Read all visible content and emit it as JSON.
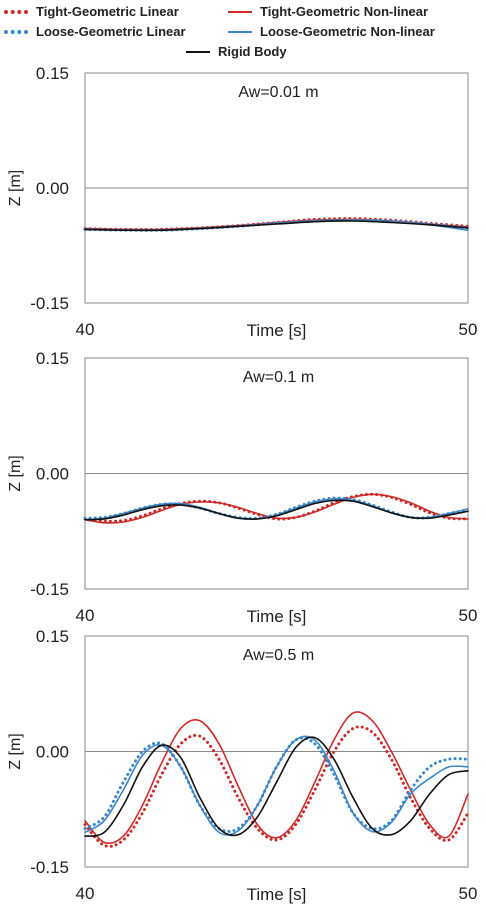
{
  "legend": {
    "items": [
      {
        "label": "Tight-Geometric Linear",
        "color": "#cf2a2a",
        "style": "dotted"
      },
      {
        "label": "Tight-Geometric Non-linear",
        "color": "#cf2a2a",
        "style": "solid"
      },
      {
        "label": "Loose-Geometric Linear",
        "color": "#3a86c8",
        "style": "dotted"
      },
      {
        "label": "Loose-Geometric Non-linear",
        "color": "#3a86c8",
        "style": "solid"
      },
      {
        "label": "Rigid Body",
        "color": "#111111",
        "style": "solid"
      }
    ]
  },
  "chart_data": [
    {
      "type": "line",
      "annotation": "Aw=0.01 m",
      "xlabel": "Time [s]",
      "ylabel": "Z [m]",
      "xlim": [
        40,
        50
      ],
      "ylim": [
        -0.15,
        0.15
      ],
      "xticks": [
        "40",
        "50"
      ],
      "yticks": [
        "0.15",
        "0.00",
        "-0.15"
      ],
      "grid": "zero line only",
      "x": [
        40,
        41,
        42,
        43,
        44,
        45,
        46,
        47,
        48,
        49,
        50
      ],
      "series": [
        {
          "name": "Tight-Geometric Linear",
          "color": "#cf2a2a",
          "style": "dotted",
          "values": [
            -0.053,
            -0.054,
            -0.054,
            -0.052,
            -0.049,
            -0.045,
            -0.041,
            -0.04,
            -0.042,
            -0.046,
            -0.05
          ]
        },
        {
          "name": "Tight-Geometric Non-linear",
          "color": "#cf2a2a",
          "style": "solid",
          "values": [
            -0.053,
            -0.054,
            -0.054,
            -0.052,
            -0.049,
            -0.045,
            -0.042,
            -0.041,
            -0.043,
            -0.047,
            -0.051
          ]
        },
        {
          "name": "Loose-Geometric Linear",
          "color": "#3a86c8",
          "style": "dotted",
          "values": [
            -0.054,
            -0.055,
            -0.055,
            -0.053,
            -0.05,
            -0.046,
            -0.043,
            -0.042,
            -0.043,
            -0.047,
            -0.052
          ]
        },
        {
          "name": "Loose-Geometric Non-linear",
          "color": "#3a86c8",
          "style": "solid",
          "values": [
            -0.054,
            -0.055,
            -0.055,
            -0.053,
            -0.05,
            -0.046,
            -0.043,
            -0.042,
            -0.044,
            -0.048,
            -0.055
          ]
        },
        {
          "name": "Rigid Body",
          "color": "#111111",
          "style": "solid",
          "values": [
            -0.054,
            -0.055,
            -0.055,
            -0.053,
            -0.05,
            -0.047,
            -0.044,
            -0.043,
            -0.045,
            -0.048,
            -0.052
          ]
        }
      ]
    },
    {
      "type": "line",
      "annotation": "Aw=0.1 m",
      "xlabel": "Time [s]",
      "ylabel": "Z [m]",
      "xlim": [
        40,
        50
      ],
      "ylim": [
        -0.15,
        0.15
      ],
      "xticks": [
        "40",
        "50"
      ],
      "yticks": [
        "0.15",
        "0.00",
        "-0.15"
      ],
      "grid": "zero line only",
      "x": [
        40,
        40.5,
        41,
        41.5,
        42,
        42.5,
        43,
        43.5,
        44,
        44.5,
        45,
        45.5,
        46,
        46.5,
        47,
        47.5,
        48,
        48.5,
        49,
        49.5,
        50
      ],
      "series": [
        {
          "name": "Tight-Geometric Linear",
          "color": "#cf2a2a",
          "style": "dotted",
          "values": [
            -0.059,
            -0.062,
            -0.061,
            -0.055,
            -0.046,
            -0.039,
            -0.036,
            -0.038,
            -0.045,
            -0.053,
            -0.059,
            -0.057,
            -0.049,
            -0.038,
            -0.03,
            -0.027,
            -0.031,
            -0.04,
            -0.051,
            -0.058,
            -0.059
          ]
        },
        {
          "name": "Tight-Geometric Non-linear",
          "color": "#cf2a2a",
          "style": "solid",
          "values": [
            -0.06,
            -0.064,
            -0.063,
            -0.057,
            -0.048,
            -0.04,
            -0.037,
            -0.038,
            -0.044,
            -0.052,
            -0.058,
            -0.057,
            -0.05,
            -0.04,
            -0.031,
            -0.027,
            -0.03,
            -0.038,
            -0.049,
            -0.057,
            -0.059
          ]
        },
        {
          "name": "Loose-Geometric Linear",
          "color": "#3a86c8",
          "style": "dotted",
          "values": [
            -0.058,
            -0.057,
            -0.052,
            -0.045,
            -0.04,
            -0.04,
            -0.045,
            -0.052,
            -0.057,
            -0.058,
            -0.053,
            -0.044,
            -0.036,
            -0.032,
            -0.034,
            -0.041,
            -0.05,
            -0.057,
            -0.057,
            -0.052,
            -0.047
          ]
        },
        {
          "name": "Loose-Geometric Non-linear",
          "color": "#3a86c8",
          "style": "solid",
          "values": [
            -0.06,
            -0.058,
            -0.052,
            -0.045,
            -0.04,
            -0.039,
            -0.044,
            -0.052,
            -0.058,
            -0.059,
            -0.054,
            -0.045,
            -0.037,
            -0.033,
            -0.035,
            -0.042,
            -0.051,
            -0.057,
            -0.057,
            -0.052,
            -0.046
          ]
        },
        {
          "name": "Rigid Body",
          "color": "#111111",
          "style": "solid",
          "values": [
            -0.06,
            -0.059,
            -0.054,
            -0.047,
            -0.042,
            -0.041,
            -0.045,
            -0.052,
            -0.058,
            -0.059,
            -0.055,
            -0.047,
            -0.039,
            -0.035,
            -0.036,
            -0.043,
            -0.051,
            -0.057,
            -0.058,
            -0.054,
            -0.049
          ]
        }
      ]
    },
    {
      "type": "line",
      "annotation": "Aw=0.5 m",
      "xlabel": "Time [s]",
      "ylabel": "Z [m]",
      "xlim": [
        40,
        50
      ],
      "ylim": [
        -0.15,
        0.15
      ],
      "xticks": [
        "40",
        "50"
      ],
      "yticks": [
        "0.15",
        "0.00",
        "-0.15"
      ],
      "grid": "zero line only",
      "x": [
        40,
        40.5,
        41,
        41.5,
        42,
        42.5,
        43,
        43.5,
        44,
        44.5,
        45,
        45.5,
        46,
        46.5,
        47,
        47.5,
        48,
        48.5,
        49,
        49.5,
        50
      ],
      "series": [
        {
          "name": "Tight-Geometric Linear",
          "color": "#cf2a2a",
          "style": "dotted",
          "values": [
            -0.095,
            -0.122,
            -0.115,
            -0.08,
            -0.03,
            0.01,
            0.02,
            -0.01,
            -0.06,
            -0.1,
            -0.115,
            -0.095,
            -0.05,
            0.0,
            0.03,
            0.025,
            -0.01,
            -0.06,
            -0.1,
            -0.115,
            -0.08
          ]
        },
        {
          "name": "Tight-Geometric Non-linear",
          "color": "#cf2a2a",
          "style": "solid",
          "values": [
            -0.09,
            -0.118,
            -0.11,
            -0.07,
            -0.015,
            0.03,
            0.04,
            0.01,
            -0.045,
            -0.095,
            -0.112,
            -0.09,
            -0.04,
            0.015,
            0.05,
            0.04,
            0.0,
            -0.05,
            -0.095,
            -0.11,
            -0.055
          ]
        },
        {
          "name": "Loose-Geometric Linear",
          "color": "#3a86c8",
          "style": "dotted",
          "values": [
            -0.1,
            -0.085,
            -0.04,
            0.0,
            0.01,
            -0.02,
            -0.07,
            -0.1,
            -0.1,
            -0.07,
            -0.02,
            0.015,
            0.01,
            -0.03,
            -0.08,
            -0.1,
            -0.09,
            -0.05,
            -0.02,
            -0.01,
            -0.01
          ]
        },
        {
          "name": "Loose-Geometric Non-linear",
          "color": "#3a86c8",
          "style": "solid",
          "values": [
            -0.105,
            -0.09,
            -0.05,
            -0.005,
            0.008,
            -0.02,
            -0.07,
            -0.105,
            -0.103,
            -0.07,
            -0.02,
            0.015,
            0.015,
            -0.025,
            -0.08,
            -0.104,
            -0.092,
            -0.055,
            -0.035,
            -0.02,
            -0.02
          ]
        },
        {
          "name": "Rigid Body",
          "color": "#111111",
          "style": "solid",
          "values": [
            -0.11,
            -0.105,
            -0.07,
            -0.02,
            0.008,
            -0.008,
            -0.06,
            -0.1,
            -0.108,
            -0.085,
            -0.04,
            0.005,
            0.018,
            -0.01,
            -0.06,
            -0.1,
            -0.108,
            -0.09,
            -0.055,
            -0.03,
            -0.025
          ]
        }
      ]
    }
  ]
}
